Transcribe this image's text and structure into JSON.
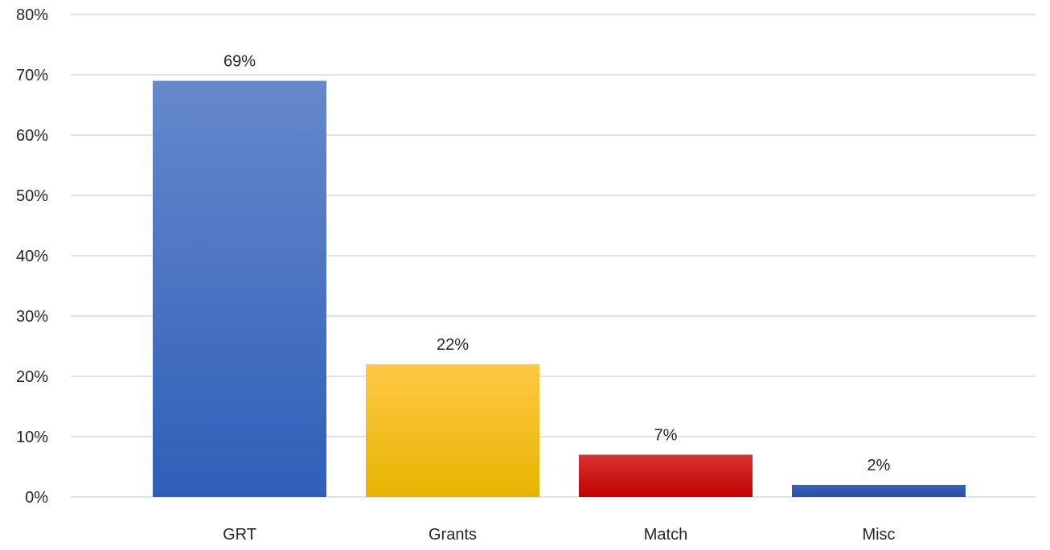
{
  "chart_data": {
    "type": "bar",
    "title": "",
    "xlabel": "",
    "ylabel": "",
    "categories": [
      "GRT",
      "Grants",
      "Match",
      "Misc"
    ],
    "values": [
      69,
      22,
      7,
      2
    ],
    "data_labels": [
      "69%",
      "22%",
      "7%",
      "2%"
    ],
    "ylim": [
      0,
      80
    ],
    "yticks": [
      0,
      10,
      20,
      30,
      40,
      50,
      60,
      70,
      80
    ],
    "ytick_labels": [
      "0%",
      "10%",
      "20%",
      "30%",
      "40%",
      "50%",
      "60%",
      "70%",
      "80%"
    ],
    "grid": true,
    "legend": "none",
    "colors": [
      {
        "top": "#6688cc",
        "bottom": "#2f5fb8"
      },
      {
        "top": "#ffc845",
        "bottom": "#e6b400"
      },
      {
        "top": "#d93333",
        "bottom": "#c00000"
      },
      {
        "top": "#3a63b8",
        "bottom": "#2a4f9e"
      }
    ]
  }
}
